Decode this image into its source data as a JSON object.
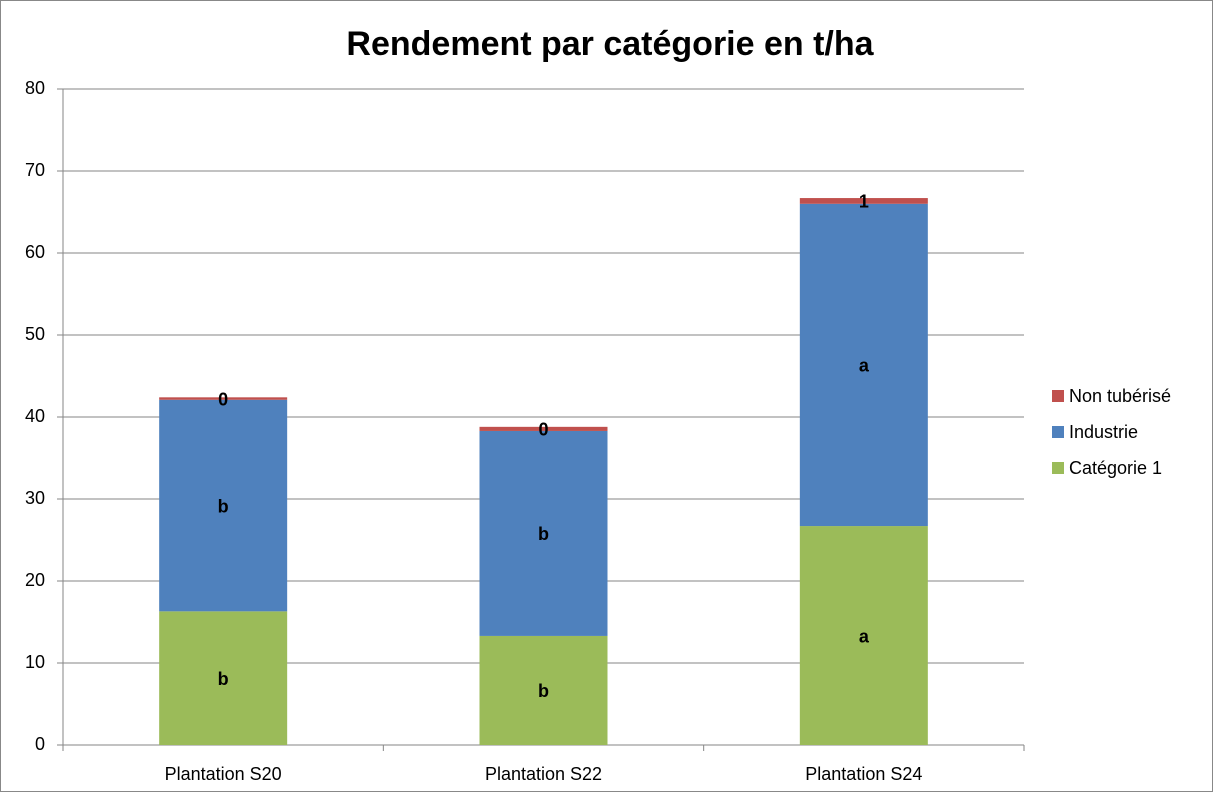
{
  "chart_data": {
    "type": "stacked-bar",
    "title": "Rendement par catégorie en t/ha",
    "categories": [
      "Plantation S20",
      "Plantation S22",
      "Plantation S24"
    ],
    "series": [
      {
        "name": "Catégorie 1",
        "color": "#9bbb59",
        "values": [
          16.3,
          13.3,
          26.7
        ],
        "value_labels": [
          "b",
          "b",
          "a"
        ]
      },
      {
        "name": "Industrie",
        "color": "#4f81bd",
        "values": [
          25.8,
          25.0,
          39.3
        ],
        "value_labels": [
          "b",
          "b",
          "a"
        ]
      },
      {
        "name": "Non tubérisé",
        "color": "#c0504d",
        "values": [
          0.3,
          0.5,
          0.7
        ],
        "value_labels": [
          "0",
          "0",
          "1"
        ]
      }
    ],
    "ylim": [
      0,
      80
    ],
    "yticks": [
      0,
      10,
      20,
      30,
      40,
      50,
      60,
      70,
      80
    ],
    "grid": true,
    "legend": "right"
  }
}
